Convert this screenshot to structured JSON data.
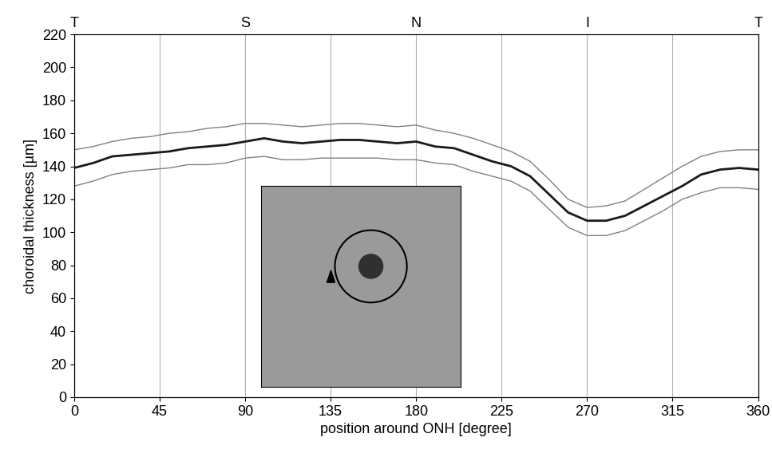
{
  "chart_data": {
    "type": "line",
    "x_label": "position around ONH [degree]",
    "y_label": "choroidal thickness [µm]",
    "x": [
      0,
      10,
      20,
      30,
      40,
      50,
      60,
      70,
      80,
      90,
      100,
      110,
      120,
      130,
      140,
      150,
      160,
      170,
      180,
      190,
      200,
      210,
      220,
      230,
      240,
      250,
      260,
      270,
      280,
      290,
      300,
      310,
      320,
      330,
      340,
      350,
      360
    ],
    "series": [
      {
        "color": "#1a1a1a",
        "values": [
          139,
          142,
          146,
          147,
          148,
          149,
          151,
          152,
          153,
          155,
          157,
          155,
          154,
          155,
          156,
          156,
          155,
          154,
          155,
          152,
          151,
          147,
          143,
          140,
          134,
          123,
          112,
          107,
          107,
          110,
          116,
          122,
          128,
          135,
          138,
          139,
          138
        ]
      },
      {
        "color": "#808080",
        "values": [
          150,
          152,
          155,
          157,
          158,
          160,
          161,
          163,
          164,
          166,
          166,
          165,
          164,
          165,
          166,
          166,
          165,
          164,
          165,
          162,
          160,
          157,
          153,
          149,
          143,
          132,
          120,
          115,
          116,
          119,
          126,
          133,
          140,
          146,
          149,
          150,
          150
        ]
      },
      {
        "color": "#808080",
        "values": [
          128,
          131,
          135,
          137,
          138,
          139,
          141,
          141,
          142,
          145,
          146,
          144,
          144,
          145,
          145,
          145,
          145,
          144,
          144,
          142,
          141,
          137,
          134,
          131,
          125,
          114,
          103,
          98,
          98,
          101,
          107,
          113,
          120,
          124,
          127,
          127,
          126
        ]
      }
    ],
    "xlim": [
      0,
      360
    ],
    "xticks": [
      0,
      45,
      90,
      135,
      180,
      225,
      270,
      315,
      360
    ],
    "ylim": [
      0,
      220
    ],
    "yticks": [
      0,
      20,
      40,
      60,
      80,
      100,
      120,
      140,
      160,
      180,
      200,
      220
    ],
    "x2ticks": [
      {
        "value": 0,
        "label": "T"
      },
      {
        "value": 90,
        "label": "S"
      },
      {
        "value": 180,
        "label": "N"
      },
      {
        "value": 270,
        "label": "I"
      },
      {
        "value": 360,
        "label": "T"
      }
    ],
    "grid": "x"
  }
}
